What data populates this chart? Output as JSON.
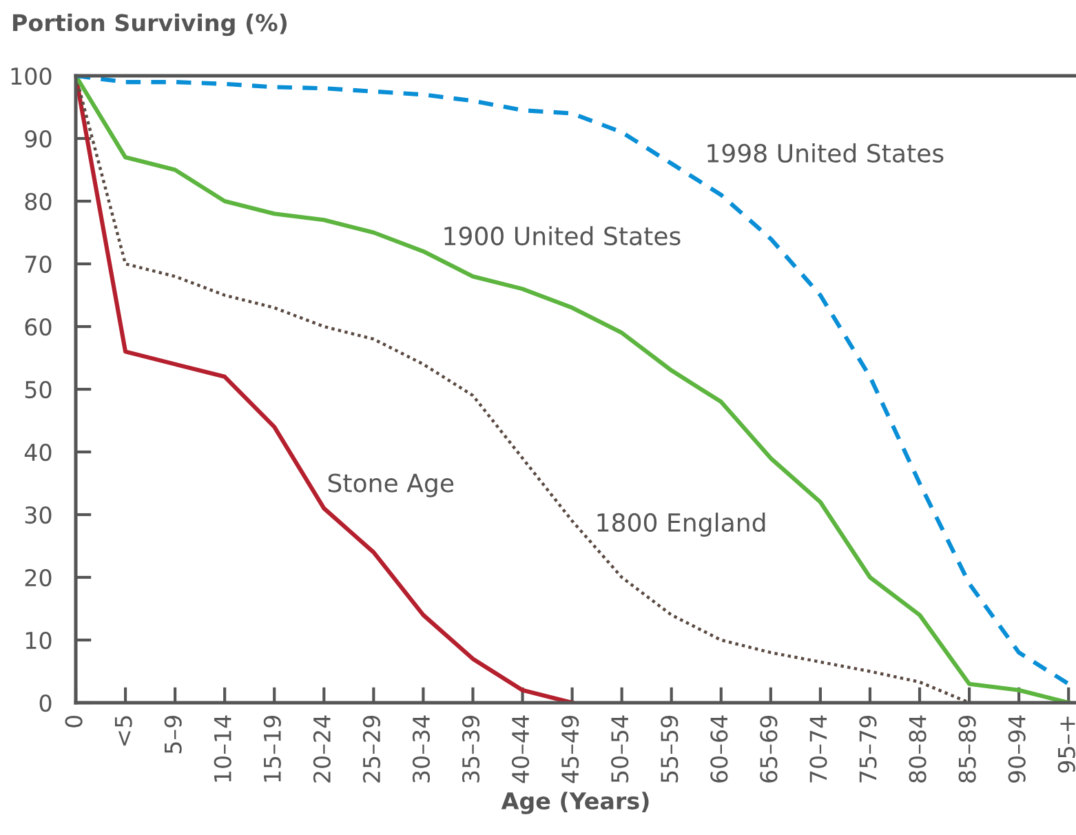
{
  "chart_data": {
    "type": "line",
    "title": "Portion Surviving (%)",
    "xlabel": "Age (Years)",
    "categories": [
      "0",
      "<5",
      "5–9",
      "10–14",
      "15–19",
      "20–24",
      "25–29",
      "30–34",
      "35–39",
      "40–44",
      "45–49",
      "50–54",
      "55–59",
      "60–64",
      "65–69",
      "70–74",
      "75–79",
      "80–84",
      "85–89",
      "90–94",
      "95–+"
    ],
    "ylim": [
      0,
      100
    ],
    "yticks": [
      0,
      10,
      20,
      30,
      40,
      50,
      60,
      70,
      80,
      90,
      100
    ],
    "grid": false,
    "legend": false,
    "marker": "none",
    "series": [
      {
        "name": "Stone Age",
        "color": "#b5202e",
        "line_style": "solid",
        "values": [
          100,
          56,
          54,
          52,
          44,
          31,
          24,
          14,
          7,
          2,
          0,
          null,
          null,
          null,
          null,
          null,
          null,
          null,
          null,
          null,
          null
        ]
      },
      {
        "name": "1800 England",
        "color": "#5a4a42",
        "line_style": "dotted",
        "values": [
          100,
          70,
          68,
          65,
          63,
          60,
          58,
          54,
          49,
          39,
          29,
          20,
          14,
          10,
          8,
          6.5,
          5,
          3.3,
          0,
          null,
          null
        ]
      },
      {
        "name": "1900 United States",
        "color": "#5db540",
        "line_style": "solid",
        "values": [
          100,
          87,
          85,
          80,
          78,
          77,
          75,
          72,
          68,
          66,
          63,
          59,
          53,
          48,
          39,
          32,
          20,
          14,
          3,
          2,
          0
        ]
      },
      {
        "name": "1998 United States",
        "color": "#0a8fd6",
        "line_style": "dashed",
        "values": [
          100,
          99,
          99,
          98.7,
          98.2,
          98,
          97.5,
          97,
          96,
          94.5,
          94,
          91,
          86,
          81,
          74,
          65,
          52,
          35,
          19,
          8,
          3
        ]
      }
    ]
  }
}
